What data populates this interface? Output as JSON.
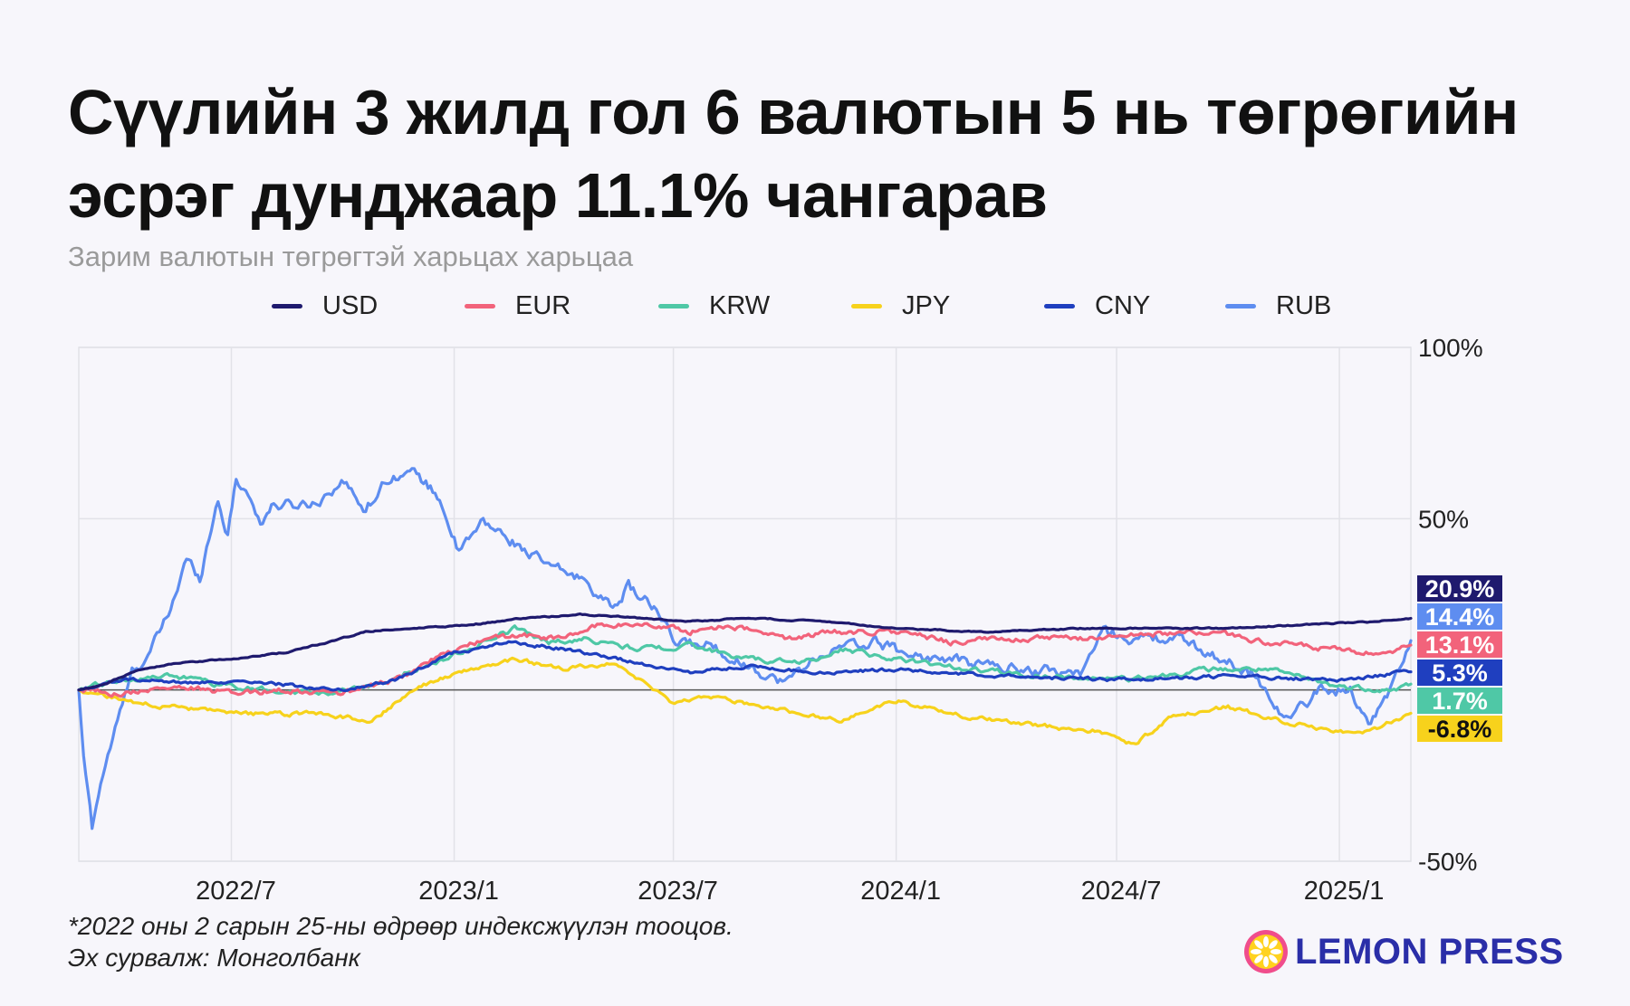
{
  "header": {
    "title_line1": "Сүүлийн 3 жилд гол 6 валютын 5 нь төгрөгийн",
    "title_line2": "эсрэг дунджаар 11.1% чангарав",
    "subtitle": "Зарим валютын төгрөгтэй харьцах харьцаа"
  },
  "legend": [
    {
      "name": "USD",
      "color": "#1f1a6e"
    },
    {
      "name": "EUR",
      "color": "#f2637b"
    },
    {
      "name": "KRW",
      "color": "#4fc8a6"
    },
    {
      "name": "JPY",
      "color": "#f7d21c"
    },
    {
      "name": "CNY",
      "color": "#1f3fbf"
    },
    {
      "name": "RUB",
      "color": "#5e8df0"
    }
  ],
  "chart_data": {
    "type": "line",
    "x_range": [
      "2022-02-25",
      "2025-03-01"
    ],
    "x_ticks": [
      {
        "label": "2022/7",
        "date": "2022-07-01"
      },
      {
        "label": "2023/1",
        "date": "2023-01-01"
      },
      {
        "label": "2023/7",
        "date": "2023-07-01"
      },
      {
        "label": "2024/1",
        "date": "2024-01-01"
      },
      {
        "label": "2024/7",
        "date": "2024-07-01"
      },
      {
        "label": "2025/1",
        "date": "2025-01-01"
      }
    ],
    "y_unit": "%",
    "ylim": [
      -50,
      100
    ],
    "y_ticks": [
      {
        "label": "100%",
        "value": 100
      },
      {
        "label": "50%",
        "value": 50
      },
      {
        "label": "-50%",
        "value": -50
      }
    ],
    "baseline": 0,
    "grid": true,
    "legend_position": "top",
    "series": [
      {
        "name": "USD",
        "color": "#1f1a6e",
        "end_label": "20.9%",
        "end_value": 20.9,
        "points": [
          [
            "2022-02-25",
            0
          ],
          [
            "2022-03-20",
            2
          ],
          [
            "2022-04-15",
            6
          ],
          [
            "2022-05-20",
            8
          ],
          [
            "2022-07-01",
            9
          ],
          [
            "2022-08-15",
            11
          ],
          [
            "2022-09-20",
            14
          ],
          [
            "2022-10-20",
            17
          ],
          [
            "2022-12-01",
            18
          ],
          [
            "2023-01-15",
            19
          ],
          [
            "2023-03-01",
            21
          ],
          [
            "2023-04-15",
            22
          ],
          [
            "2023-06-01",
            21
          ],
          [
            "2023-07-15",
            20
          ],
          [
            "2023-09-01",
            21
          ],
          [
            "2023-11-01",
            20
          ],
          [
            "2024-01-01",
            18
          ],
          [
            "2024-03-15",
            17
          ],
          [
            "2024-06-01",
            18
          ],
          [
            "2024-08-01",
            18
          ],
          [
            "2024-10-01",
            18
          ],
          [
            "2024-12-01",
            19
          ],
          [
            "2025-02-01",
            20
          ],
          [
            "2025-03-01",
            20.9
          ]
        ]
      },
      {
        "name": "EUR",
        "color": "#f2637b",
        "end_label": "13.1%",
        "end_value": 13.1,
        "points": [
          [
            "2022-02-25",
            0
          ],
          [
            "2022-04-01",
            -1
          ],
          [
            "2022-05-15",
            1
          ],
          [
            "2022-07-01",
            -1
          ],
          [
            "2022-08-15",
            0
          ],
          [
            "2022-10-01",
            -1
          ],
          [
            "2022-11-15",
            3
          ],
          [
            "2022-12-15",
            9
          ],
          [
            "2023-01-20",
            14
          ],
          [
            "2023-02-20",
            16
          ],
          [
            "2023-04-01",
            15
          ],
          [
            "2023-05-01",
            19
          ],
          [
            "2023-06-15",
            19
          ],
          [
            "2023-07-15",
            17
          ],
          [
            "2023-08-15",
            19
          ],
          [
            "2023-10-01",
            15
          ],
          [
            "2023-11-15",
            17
          ],
          [
            "2024-01-01",
            17
          ],
          [
            "2024-02-15",
            14
          ],
          [
            "2024-04-01",
            15
          ],
          [
            "2024-06-01",
            15
          ],
          [
            "2024-07-15",
            16
          ],
          [
            "2024-09-15",
            17
          ],
          [
            "2024-11-01",
            14
          ],
          [
            "2025-01-15",
            11
          ],
          [
            "2025-02-10",
            10
          ],
          [
            "2025-03-01",
            13.1
          ]
        ]
      },
      {
        "name": "KRW",
        "color": "#4fc8a6",
        "end_label": "1.7%",
        "end_value": 1.7,
        "points": [
          [
            "2022-02-25",
            0
          ],
          [
            "2022-04-01",
            3
          ],
          [
            "2022-05-15",
            4
          ],
          [
            "2022-06-15",
            2
          ],
          [
            "2022-08-01",
            0
          ],
          [
            "2022-09-15",
            -1
          ],
          [
            "2022-11-01",
            2
          ],
          [
            "2022-12-15",
            8
          ],
          [
            "2023-01-20",
            13
          ],
          [
            "2023-02-20",
            18
          ],
          [
            "2023-03-20",
            14
          ],
          [
            "2023-04-20",
            15
          ],
          [
            "2023-06-01",
            12
          ],
          [
            "2023-07-15",
            13
          ],
          [
            "2023-09-01",
            9
          ],
          [
            "2023-10-15",
            8
          ],
          [
            "2023-11-20",
            12
          ],
          [
            "2024-01-01",
            9
          ],
          [
            "2024-03-01",
            6
          ],
          [
            "2024-05-01",
            4
          ],
          [
            "2024-07-15",
            3
          ],
          [
            "2024-09-15",
            6
          ],
          [
            "2024-11-01",
            6
          ],
          [
            "2025-01-01",
            1
          ],
          [
            "2025-02-15",
            0
          ],
          [
            "2025-03-01",
            1.7
          ]
        ]
      },
      {
        "name": "JPY",
        "color": "#f7d21c",
        "end_label": "-6.8%",
        "end_value": -6.8,
        "points": [
          [
            "2022-02-25",
            0
          ],
          [
            "2022-04-01",
            -3
          ],
          [
            "2022-05-15",
            -5
          ],
          [
            "2022-07-01",
            -7
          ],
          [
            "2022-09-15",
            -7
          ],
          [
            "2022-10-25",
            -9
          ],
          [
            "2022-12-01",
            1
          ],
          [
            "2023-01-15",
            6
          ],
          [
            "2023-02-20",
            9
          ],
          [
            "2023-04-01",
            6
          ],
          [
            "2023-05-15",
            8
          ],
          [
            "2023-06-30",
            -4
          ],
          [
            "2023-08-01",
            -2
          ],
          [
            "2023-10-01",
            -6
          ],
          [
            "2023-11-15",
            -9
          ],
          [
            "2024-01-01",
            -3
          ],
          [
            "2024-02-15",
            -7
          ],
          [
            "2024-04-15",
            -10
          ],
          [
            "2024-06-15",
            -12
          ],
          [
            "2024-07-15",
            -16
          ],
          [
            "2024-08-15",
            -8
          ],
          [
            "2024-10-01",
            -5
          ],
          [
            "2024-11-15",
            -9
          ],
          [
            "2024-12-15",
            -11
          ],
          [
            "2025-01-20",
            -13
          ],
          [
            "2025-03-01",
            -6.8
          ]
        ]
      },
      {
        "name": "CNY",
        "color": "#1f3fbf",
        "end_label": "5.3%",
        "end_value": 5.3,
        "points": [
          [
            "2022-02-25",
            0
          ],
          [
            "2022-04-01",
            3
          ],
          [
            "2022-06-01",
            2
          ],
          [
            "2022-08-01",
            2
          ],
          [
            "2022-10-01",
            0
          ],
          [
            "2022-11-15",
            3
          ],
          [
            "2023-01-01",
            11
          ],
          [
            "2023-02-15",
            14
          ],
          [
            "2023-04-01",
            12
          ],
          [
            "2023-06-01",
            8
          ],
          [
            "2023-07-15",
            5
          ],
          [
            "2023-09-01",
            7
          ],
          [
            "2023-11-01",
            5
          ],
          [
            "2024-01-01",
            6
          ],
          [
            "2024-04-01",
            4
          ],
          [
            "2024-07-01",
            3
          ],
          [
            "2024-10-01",
            4
          ],
          [
            "2025-01-01",
            3
          ],
          [
            "2025-03-01",
            5.3
          ]
        ]
      },
      {
        "name": "RUB",
        "color": "#5e8df0",
        "end_label": "14.4%",
        "end_value": 14.4,
        "points": [
          [
            "2022-02-25",
            0
          ],
          [
            "2022-03-01",
            -20
          ],
          [
            "2022-03-08",
            -40
          ],
          [
            "2022-03-15",
            -27
          ],
          [
            "2022-03-25",
            -14
          ],
          [
            "2022-04-10",
            5
          ],
          [
            "2022-04-25",
            11
          ],
          [
            "2022-05-10",
            22
          ],
          [
            "2022-05-25",
            38
          ],
          [
            "2022-06-05",
            33
          ],
          [
            "2022-06-20",
            56
          ],
          [
            "2022-06-28",
            45
          ],
          [
            "2022-07-05",
            62
          ],
          [
            "2022-07-15",
            57
          ],
          [
            "2022-07-25",
            49
          ],
          [
            "2022-08-05",
            54
          ],
          [
            "2022-08-25",
            54
          ],
          [
            "2022-09-10",
            55
          ],
          [
            "2022-09-30",
            61
          ],
          [
            "2022-10-20",
            53
          ],
          [
            "2022-11-10",
            63
          ],
          [
            "2022-12-01",
            63
          ],
          [
            "2022-12-20",
            56
          ],
          [
            "2023-01-05",
            40
          ],
          [
            "2023-01-25",
            49
          ],
          [
            "2023-02-20",
            43
          ],
          [
            "2023-03-20",
            36
          ],
          [
            "2023-04-20",
            32
          ],
          [
            "2023-05-10",
            24
          ],
          [
            "2023-05-25",
            30
          ],
          [
            "2023-06-15",
            24
          ],
          [
            "2023-07-01",
            14
          ],
          [
            "2023-08-01",
            13
          ],
          [
            "2023-09-01",
            7
          ],
          [
            "2023-10-01",
            2
          ],
          [
            "2023-11-01",
            11
          ],
          [
            "2023-12-15",
            14
          ],
          [
            "2024-01-15",
            10
          ],
          [
            "2024-03-01",
            8
          ],
          [
            "2024-04-15",
            6
          ],
          [
            "2024-06-01",
            5
          ],
          [
            "2024-06-20",
            17
          ],
          [
            "2024-07-15",
            15
          ],
          [
            "2024-08-20",
            15
          ],
          [
            "2024-09-20",
            10
          ],
          [
            "2024-10-20",
            5
          ],
          [
            "2024-11-20",
            -9
          ],
          [
            "2024-12-15",
            0
          ],
          [
            "2025-01-10",
            0
          ],
          [
            "2025-01-25",
            -10
          ],
          [
            "2025-02-15",
            2
          ],
          [
            "2025-03-01",
            14.4
          ]
        ]
      }
    ]
  },
  "footer": {
    "note_line1": "*2022 оны 2 сарын 25-ны өдрөөр индексжүүлэн тооцов.",
    "note_line2": "Эх сурвалж: Монголбанк",
    "logo_text": "LEMON PRESS"
  }
}
